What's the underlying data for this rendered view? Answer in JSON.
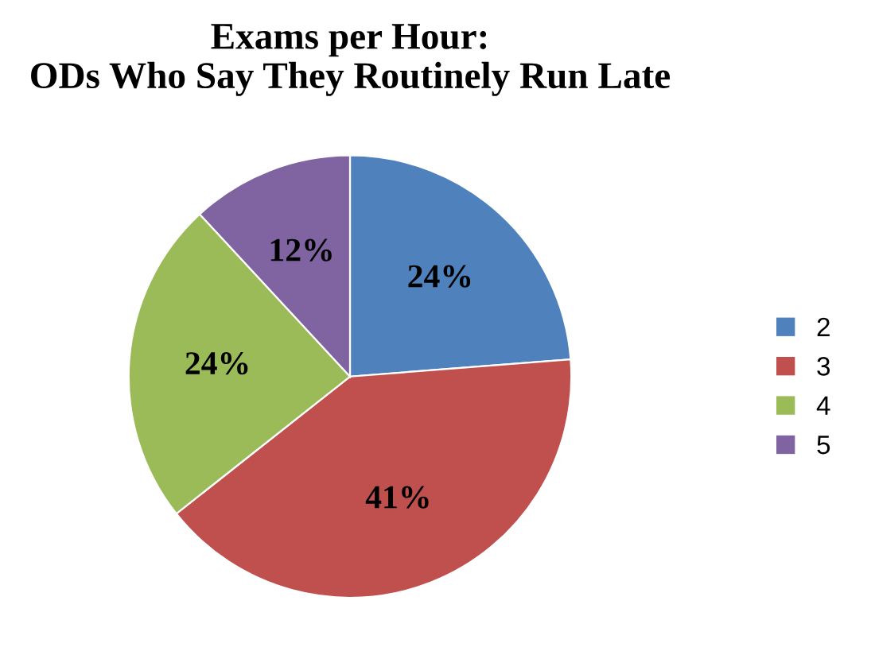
{
  "chart_data": {
    "type": "pie",
    "title": "Exams per Hour:\nODs Who Say They Routinely Run Late",
    "categories": [
      "2",
      "3",
      "4",
      "5"
    ],
    "values": [
      24,
      41,
      24,
      12
    ],
    "colors": [
      "#4f81bd",
      "#c0504d",
      "#9bbb59",
      "#8064a2"
    ],
    "value_labels": [
      "24%",
      "41%",
      "24%",
      "12%"
    ],
    "legend": "right"
  }
}
